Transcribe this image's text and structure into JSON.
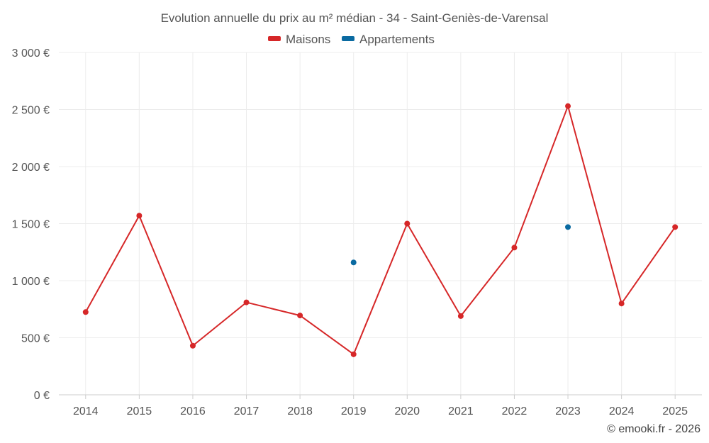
{
  "chart_data": {
    "type": "line",
    "title": "Evolution annuelle du prix au m² médian - 34 - Saint-Geniès-de-Varensal",
    "categories": [
      "2014",
      "2015",
      "2016",
      "2017",
      "2018",
      "2019",
      "2020",
      "2021",
      "2022",
      "2023",
      "2024",
      "2025"
    ],
    "series": [
      {
        "name": "Maisons",
        "color": "#d62728",
        "values": [
          725,
          1570,
          430,
          810,
          695,
          355,
          1500,
          690,
          1290,
          2530,
          800,
          1470
        ]
      },
      {
        "name": "Appartements",
        "color": "#0a6aa1",
        "values": [
          null,
          null,
          null,
          null,
          null,
          1160,
          null,
          null,
          null,
          1470,
          null,
          null
        ]
      }
    ],
    "yticks": [
      0,
      500,
      1000,
      1500,
      2000,
      2500,
      3000
    ],
    "ytick_labels": [
      "0 €",
      "500 €",
      "1 000 €",
      "1 500 €",
      "2 000 €",
      "2 500 €",
      "3 000 €"
    ],
    "ylim": [
      0,
      3000
    ],
    "grid": true,
    "legend_position": "top-center",
    "xlabel": "",
    "ylabel": ""
  },
  "credit": "© emooki.fr - 2026"
}
